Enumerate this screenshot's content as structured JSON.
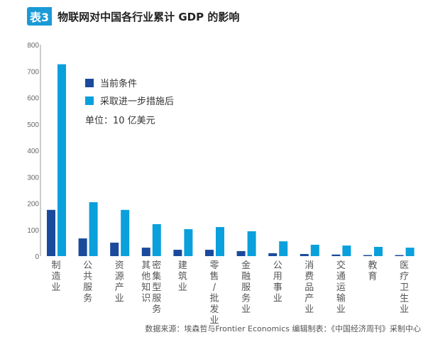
{
  "header": {
    "badge": "表3",
    "title": "物联网对中国各行业累计 GDP 的影响"
  },
  "footer": "数据来源：埃森哲与Frontier Economics 编辑制表：《中国经济周刊》采制中心",
  "chart_data": {
    "type": "bar",
    "title": "物联网对中国各行业累计 GDP 的影响",
    "unit_note": "单位：10 亿美元",
    "ylim": [
      0,
      800
    ],
    "yticks": [
      0,
      100,
      200,
      300,
      400,
      500,
      600,
      700,
      800
    ],
    "grid": false,
    "legend_placement": "top-center",
    "categories": [
      [
        "制造业"
      ],
      [
        "公共服务"
      ],
      [
        "资源产业"
      ],
      [
        "其他知识",
        "密集型服务"
      ],
      [
        "建筑业"
      ],
      [
        "零售/批发业"
      ],
      [
        "金融服务业"
      ],
      [
        "公用事业"
      ],
      [
        "消费品产业"
      ],
      [
        "交通运输业"
      ],
      [
        "教育"
      ],
      [
        "医疗卫生业"
      ]
    ],
    "series": [
      {
        "name": "当前条件",
        "color": "#1a4a9c",
        "values": [
          175,
          67,
          51,
          32,
          24,
          24,
          19,
          11,
          8,
          6,
          4,
          4
        ]
      },
      {
        "name": "采取进一步措施后",
        "color": "#0aa0dc",
        "values": [
          726,
          204,
          175,
          121,
          102,
          110,
          94,
          56,
          43,
          40,
          35,
          32
        ]
      }
    ]
  }
}
